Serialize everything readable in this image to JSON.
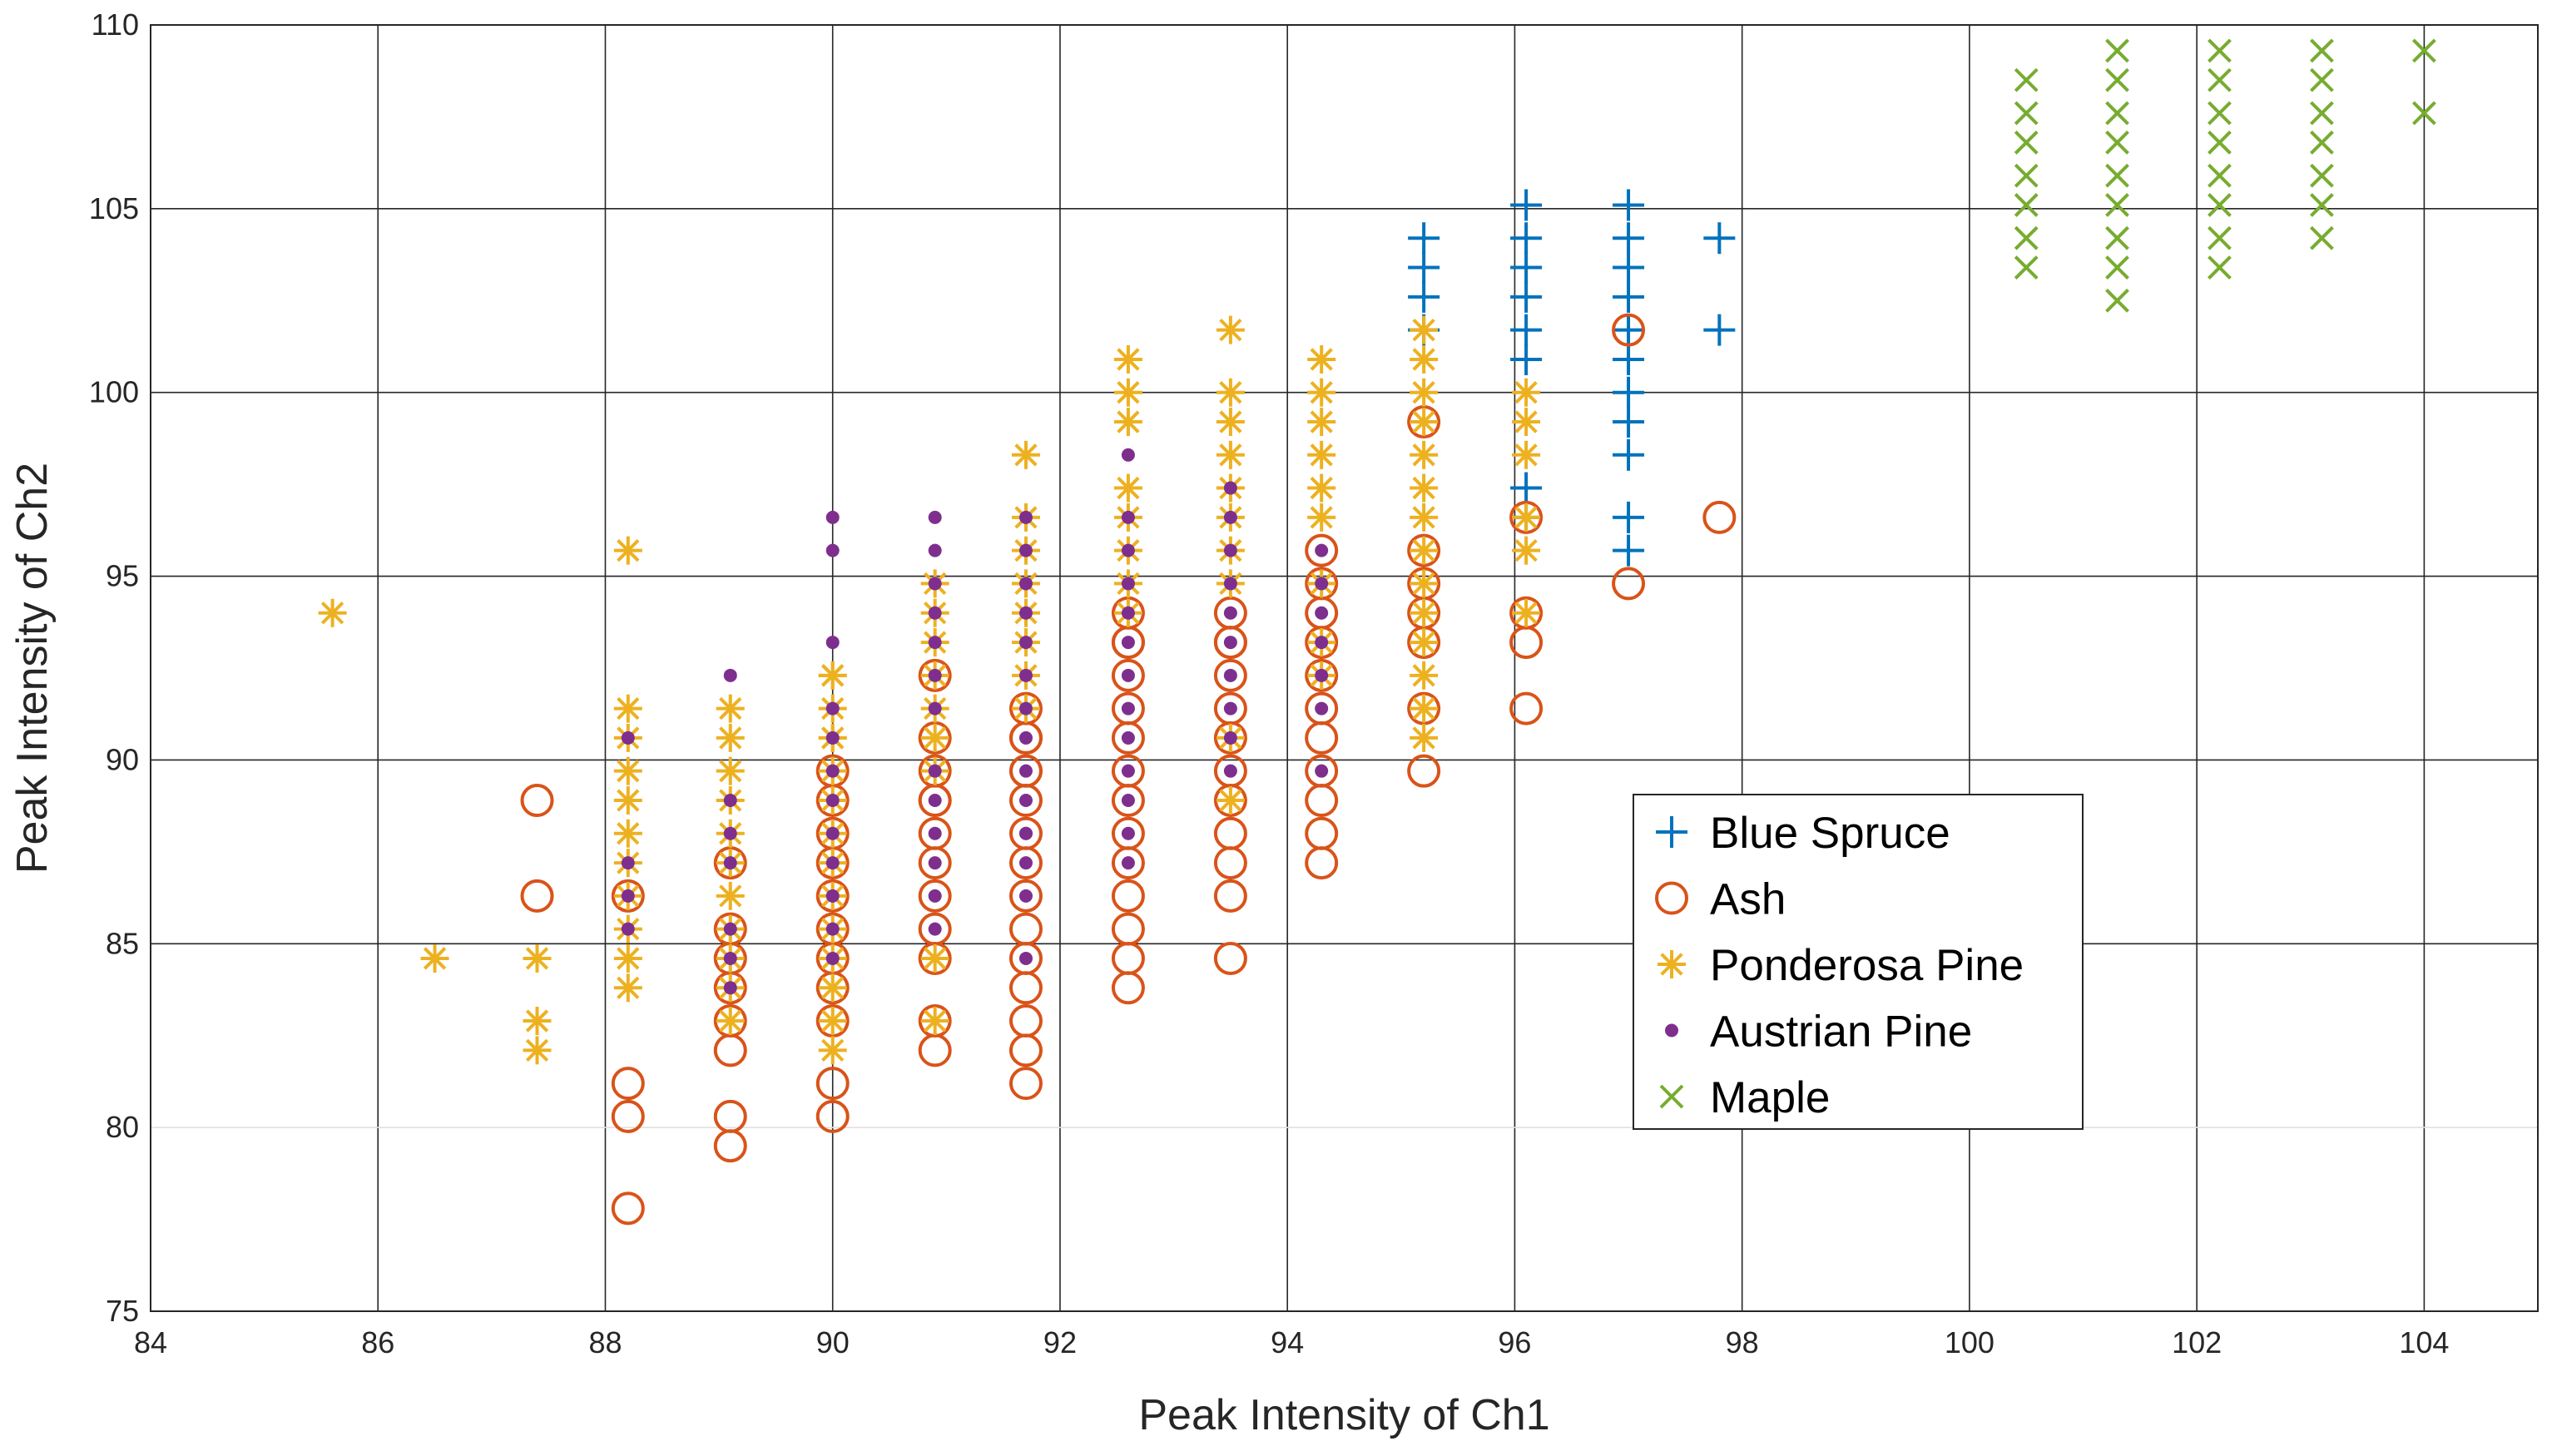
{
  "chart_data": {
    "type": "scatter",
    "title": "",
    "xlabel": "Peak Intensity of Ch1",
    "ylabel": "Peak Intensity of Ch2",
    "xlim": [
      84,
      105
    ],
    "ylim": [
      75,
      110
    ],
    "xticks": [
      84,
      86,
      88,
      90,
      92,
      94,
      96,
      98,
      100,
      102,
      104
    ],
    "yticks": [
      75,
      80,
      85,
      90,
      95,
      100,
      105,
      110
    ],
    "xtick_labels": [
      "84",
      "86",
      "88",
      "90",
      "92",
      "94",
      "96",
      "98",
      "100",
      "102",
      "104"
    ],
    "ytick_labels": [
      "75",
      "80",
      "85",
      "90",
      "95",
      "100",
      "105",
      "110"
    ],
    "grid": true,
    "legend_position": "right-center",
    "series": [
      {
        "name": "Blue Spruce",
        "marker": "plus",
        "color": "#0072BD",
        "x": [
          95.2,
          95.2,
          95.2,
          95.2,
          96.1,
          96.1,
          96.1,
          96.1,
          96.1,
          96.1,
          96.1,
          96.1,
          97.0,
          97.0,
          97.0,
          97.0,
          97.0,
          97.0,
          97.0,
          97.0,
          97.0,
          97.0,
          97.0,
          97.8,
          97.8
        ],
        "y": [
          104.2,
          103.4,
          102.6,
          101.7,
          105.1,
          104.2,
          103.4,
          102.6,
          101.7,
          100.9,
          97.4,
          96.6,
          105.1,
          104.2,
          103.4,
          102.6,
          101.7,
          100.9,
          100.0,
          99.2,
          98.3,
          96.6,
          95.7,
          104.2,
          101.7
        ]
      },
      {
        "name": "Ash",
        "marker": "circle",
        "color": "#D95319",
        "x": [
          87.4,
          87.4,
          88.2,
          88.2,
          88.2,
          88.2,
          89.1,
          89.1,
          89.1,
          89.1,
          89.1,
          89.1,
          89.1,
          89.1,
          90.0,
          90.0,
          90.0,
          90.0,
          90.0,
          90.0,
          90.0,
          90.0,
          90.0,
          90.0,
          90.0,
          90.9,
          90.9,
          90.9,
          90.9,
          90.9,
          90.9,
          90.9,
          90.9,
          90.9,
          90.9,
          90.9,
          90.9,
          91.7,
          91.7,
          91.7,
          91.7,
          91.7,
          91.7,
          91.7,
          91.7,
          91.7,
          91.7,
          91.7,
          91.7,
          91.7,
          91.7,
          91.7,
          92.6,
          92.6,
          92.6,
          92.6,
          92.6,
          92.6,
          92.6,
          92.6,
          92.6,
          92.6,
          92.6,
          92.6,
          92.6,
          92.6,
          93.5,
          93.5,
          93.5,
          93.5,
          93.5,
          93.5,
          93.5,
          93.5,
          93.5,
          93.5,
          93.5,
          93.5,
          94.3,
          94.3,
          94.3,
          94.3,
          94.3,
          94.3,
          94.3,
          94.3,
          94.3,
          94.3,
          94.3,
          95.2,
          95.2,
          95.2,
          95.2,
          95.2,
          95.2,
          95.2,
          96.1,
          96.1,
          96.1,
          96.1,
          97.0,
          97.0,
          97.8
        ],
        "y": [
          88.9,
          86.3,
          86.3,
          81.2,
          80.3,
          77.8,
          87.2,
          85.4,
          84.6,
          83.8,
          82.9,
          82.1,
          80.3,
          79.5,
          89.7,
          88.9,
          88.0,
          87.2,
          86.3,
          85.4,
          84.6,
          82.9,
          81.2,
          80.3,
          83.8,
          92.3,
          90.6,
          89.7,
          88.9,
          88.0,
          87.2,
          86.3,
          85.4,
          84.6,
          82.9,
          82.1,
          88.9,
          91.4,
          90.6,
          89.7,
          88.9,
          88.0,
          87.2,
          86.3,
          85.4,
          84.6,
          83.8,
          82.9,
          82.1,
          81.2,
          90.6,
          89.7,
          94.0,
          93.2,
          92.3,
          91.4,
          90.6,
          89.7,
          88.9,
          88.0,
          87.2,
          86.3,
          85.4,
          84.6,
          83.8,
          93.2,
          94.0,
          93.2,
          92.3,
          91.4,
          90.6,
          89.7,
          88.9,
          88.0,
          87.2,
          86.3,
          84.6,
          93.2,
          95.7,
          94.8,
          93.2,
          92.3,
          91.4,
          90.6,
          89.7,
          88.9,
          88.0,
          87.2,
          94.0,
          99.2,
          94.8,
          94.0,
          93.2,
          91.4,
          89.7,
          95.7,
          96.6,
          94.0,
          93.2,
          91.4,
          101.7,
          94.8,
          96.6
        ]
      },
      {
        "name": "Ponderosa Pine",
        "marker": "asterisk",
        "color": "#EDB120",
        "x": [
          85.6,
          86.5,
          87.4,
          87.4,
          87.4,
          88.2,
          88.2,
          88.2,
          88.2,
          88.2,
          88.2,
          88.2,
          88.2,
          88.2,
          88.2,
          88.2,
          89.1,
          89.1,
          89.1,
          89.1,
          89.1,
          89.1,
          89.1,
          89.1,
          89.1,
          89.1,
          89.1,
          90.0,
          90.0,
          90.0,
          90.0,
          90.0,
          90.0,
          90.0,
          90.0,
          90.0,
          90.0,
          90.0,
          90.0,
          90.0,
          90.0,
          90.0,
          90.9,
          90.9,
          90.9,
          90.9,
          90.9,
          90.9,
          90.9,
          90.9,
          90.9,
          91.7,
          91.7,
          91.7,
          91.7,
          91.7,
          91.7,
          91.7,
          91.7,
          92.6,
          92.6,
          92.6,
          92.6,
          92.6,
          92.6,
          92.6,
          92.6,
          93.5,
          93.5,
          93.5,
          93.5,
          93.5,
          93.5,
          93.5,
          93.5,
          93.5,
          93.5,
          94.3,
          94.3,
          94.3,
          94.3,
          94.3,
          94.3,
          94.3,
          94.3,
          94.3,
          95.2,
          95.2,
          95.2,
          95.2,
          95.2,
          95.2,
          95.2,
          95.2,
          95.2,
          95.2,
          95.2,
          95.2,
          95.2,
          95.2,
          96.1,
          96.1,
          96.1,
          96.1,
          96.1,
          96.1
        ],
        "y": [
          94.0,
          84.6,
          84.6,
          82.9,
          82.1,
          95.7,
          91.4,
          90.6,
          89.7,
          88.9,
          88.0,
          87.2,
          86.3,
          85.4,
          84.6,
          83.8,
          91.4,
          90.6,
          89.7,
          88.9,
          88.0,
          87.2,
          86.3,
          85.4,
          84.6,
          83.8,
          82.9,
          92.3,
          91.4,
          90.6,
          89.7,
          88.9,
          88.0,
          87.2,
          86.3,
          85.4,
          84.6,
          83.8,
          82.9,
          82.1,
          92.3,
          90.6,
          94.8,
          94.0,
          93.2,
          92.3,
          91.4,
          90.6,
          89.7,
          84.6,
          82.9,
          98.3,
          96.6,
          95.7,
          94.8,
          94.0,
          93.2,
          92.3,
          91.4,
          100.9,
          100.0,
          99.2,
          97.4,
          96.6,
          95.7,
          94.8,
          94.0,
          101.7,
          100.0,
          99.2,
          98.3,
          97.4,
          96.6,
          95.7,
          94.8,
          90.6,
          88.9,
          100.9,
          100.0,
          99.2,
          98.3,
          97.4,
          96.6,
          94.8,
          93.2,
          92.3,
          101.7,
          100.9,
          100.0,
          99.2,
          98.3,
          97.4,
          96.6,
          95.7,
          94.8,
          94.0,
          93.2,
          92.3,
          91.4,
          90.6,
          100.0,
          99.2,
          98.3,
          96.6,
          95.7,
          94.0
        ]
      },
      {
        "name": "Austrian Pine",
        "marker": "dot",
        "color": "#7E2F8E",
        "x": [
          88.2,
          88.2,
          88.2,
          88.2,
          89.1,
          89.1,
          89.1,
          89.1,
          89.1,
          89.1,
          89.1,
          90.0,
          90.0,
          90.0,
          90.0,
          90.0,
          90.0,
          90.0,
          90.0,
          90.0,
          90.0,
          90.0,
          90.0,
          90.9,
          90.9,
          90.9,
          90.9,
          90.9,
          90.9,
          90.9,
          90.9,
          90.9,
          90.9,
          90.9,
          90.9,
          90.9,
          91.7,
          91.7,
          91.7,
          91.7,
          91.7,
          91.7,
          91.7,
          91.7,
          91.7,
          91.7,
          91.7,
          91.7,
          91.7,
          91.7,
          91.7,
          92.6,
          92.6,
          92.6,
          92.6,
          92.6,
          92.6,
          92.6,
          92.6,
          92.6,
          92.6,
          92.6,
          92.6,
          92.6,
          93.5,
          93.5,
          93.5,
          93.5,
          93.5,
          93.5,
          93.5,
          93.5,
          93.5,
          93.5,
          94.3,
          94.3,
          94.3,
          94.3,
          94.3,
          94.3,
          94.3
        ],
        "y": [
          90.6,
          87.2,
          86.3,
          85.4,
          92.3,
          88.9,
          88.0,
          87.2,
          85.4,
          84.6,
          83.8,
          96.6,
          95.7,
          93.2,
          91.4,
          90.6,
          89.7,
          88.9,
          88.0,
          87.2,
          86.3,
          85.4,
          84.6,
          96.6,
          95.7,
          94.8,
          94.0,
          93.2,
          92.3,
          91.4,
          89.7,
          88.9,
          88.0,
          87.2,
          86.3,
          85.4,
          95.7,
          94.8,
          94.0,
          93.2,
          92.3,
          91.4,
          90.6,
          89.7,
          88.9,
          88.0,
          87.2,
          86.3,
          84.6,
          96.6,
          88.0,
          98.3,
          96.6,
          95.7,
          94.8,
          94.0,
          93.2,
          92.3,
          91.4,
          90.6,
          89.7,
          88.9,
          88.0,
          87.2,
          97.4,
          96.6,
          95.7,
          94.8,
          94.0,
          93.2,
          92.3,
          91.4,
          90.6,
          89.7,
          95.7,
          94.8,
          94.0,
          93.2,
          92.3,
          91.4,
          89.7
        ]
      },
      {
        "name": "Maple",
        "marker": "x",
        "color": "#77AC30",
        "x": [
          100.5,
          100.5,
          100.5,
          100.5,
          100.5,
          100.5,
          100.5,
          101.3,
          101.3,
          101.3,
          101.3,
          101.3,
          101.3,
          101.3,
          101.3,
          101.3,
          102.2,
          102.2,
          102.2,
          102.2,
          102.2,
          102.2,
          102.2,
          102.2,
          103.1,
          103.1,
          103.1,
          103.1,
          103.1,
          103.1,
          103.1,
          104.0,
          104.0
        ],
        "y": [
          108.5,
          107.6,
          106.8,
          105.9,
          105.1,
          104.2,
          103.4,
          109.3,
          108.5,
          107.6,
          106.8,
          105.9,
          105.1,
          104.2,
          103.4,
          102.5,
          109.3,
          108.5,
          107.6,
          106.8,
          105.9,
          105.1,
          104.2,
          103.4,
          109.3,
          108.5,
          107.6,
          106.8,
          105.9,
          105.1,
          104.2,
          109.3,
          107.6
        ]
      }
    ]
  }
}
